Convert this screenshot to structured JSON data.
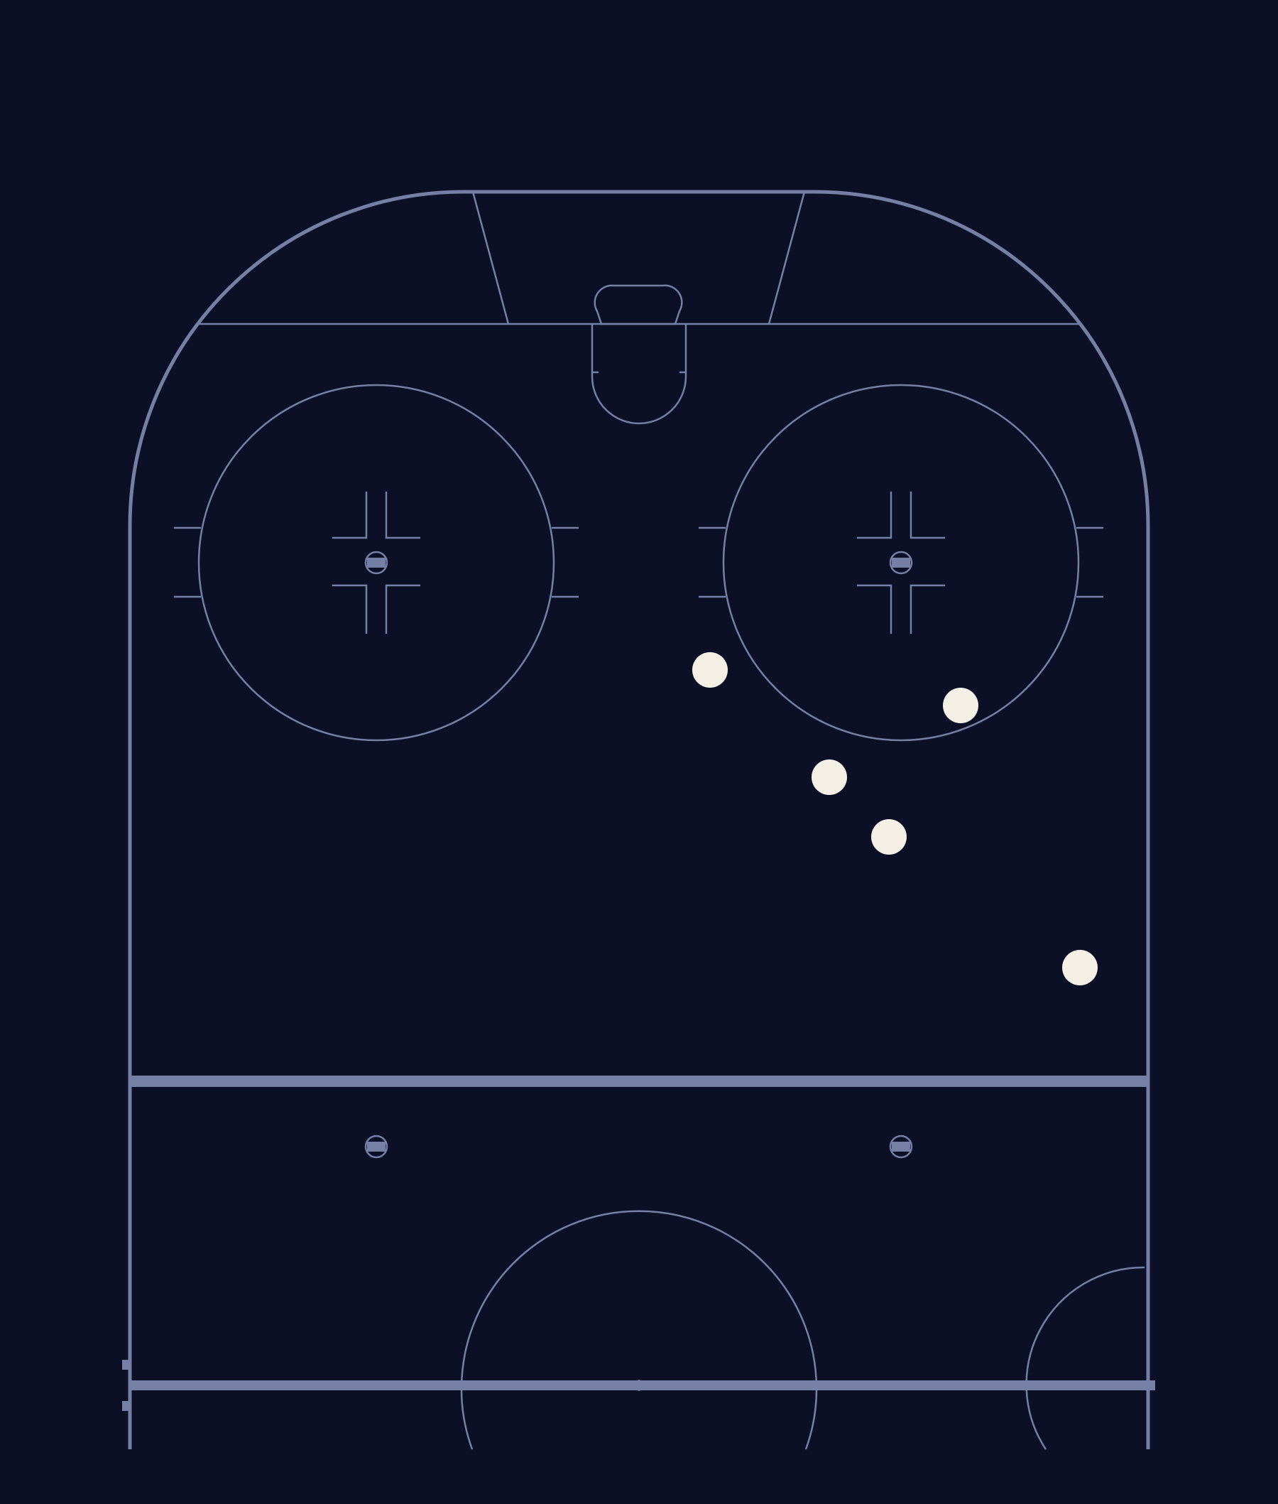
{
  "rink": {
    "colors": {
      "background": "#0b1026",
      "lines": "#7580a4",
      "shot": "#f4f0e6"
    },
    "features": [
      "boards",
      "goal-line",
      "goal-crease",
      "trapezoid",
      "faceoff-circle-left",
      "faceoff-circle-right",
      "blue-line",
      "neutral-zone-dots",
      "center-line",
      "center-circle",
      "referee-crease"
    ]
  },
  "shots": [
    {
      "id": "shot-1"
    },
    {
      "id": "shot-2"
    },
    {
      "id": "shot-3"
    },
    {
      "id": "shot-4"
    },
    {
      "id": "shot-5"
    }
  ]
}
